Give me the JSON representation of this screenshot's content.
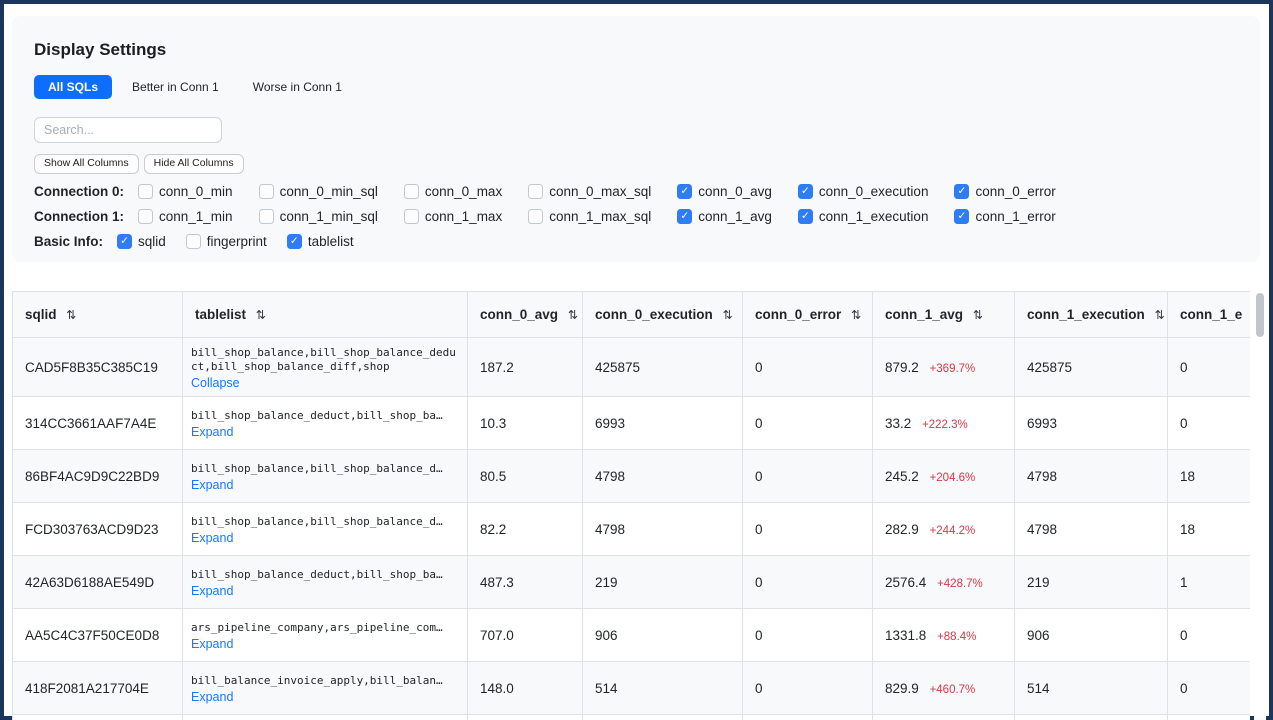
{
  "panel": {
    "title": "Display Settings",
    "tabs": [
      {
        "label": "All SQLs",
        "active": true
      },
      {
        "label": "Better in Conn 1",
        "active": false
      },
      {
        "label": "Worse in Conn 1",
        "active": false
      }
    ],
    "search_placeholder": "Search...",
    "show_all_label": "Show All Columns",
    "hide_all_label": "Hide All Columns",
    "groups": {
      "conn0": {
        "label": "Connection 0:",
        "items": [
          {
            "label": "conn_0_min",
            "checked": false
          },
          {
            "label": "conn_0_min_sql",
            "checked": false
          },
          {
            "label": "conn_0_max",
            "checked": false
          },
          {
            "label": "conn_0_max_sql",
            "checked": false
          },
          {
            "label": "conn_0_avg",
            "checked": true
          },
          {
            "label": "conn_0_execution",
            "checked": true
          },
          {
            "label": "conn_0_error",
            "checked": true
          }
        ]
      },
      "conn1": {
        "label": "Connection 1:",
        "items": [
          {
            "label": "conn_1_min",
            "checked": false
          },
          {
            "label": "conn_1_min_sql",
            "checked": false
          },
          {
            "label": "conn_1_max",
            "checked": false
          },
          {
            "label": "conn_1_max_sql",
            "checked": false
          },
          {
            "label": "conn_1_avg",
            "checked": true
          },
          {
            "label": "conn_1_execution",
            "checked": true
          },
          {
            "label": "conn_1_error",
            "checked": true
          }
        ]
      },
      "basic": {
        "label": "Basic Info:",
        "items": [
          {
            "label": "sqlid",
            "checked": true
          },
          {
            "label": "fingerprint",
            "checked": false
          },
          {
            "label": "tablelist",
            "checked": true
          }
        ]
      }
    },
    "checkmark_icon": "✓"
  },
  "table": {
    "sort_icon": "⇅",
    "columns": [
      {
        "label": "sqlid",
        "sortable": true
      },
      {
        "label": "tablelist",
        "sortable": true
      },
      {
        "label": "conn_0_avg",
        "sortable": true
      },
      {
        "label": "conn_0_execution",
        "sortable": true
      },
      {
        "label": "conn_0_error",
        "sortable": true
      },
      {
        "label": "conn_1_avg",
        "sortable": true
      },
      {
        "label": "conn_1_execution",
        "sortable": true
      },
      {
        "label": "conn_1_e",
        "sortable": false
      }
    ],
    "rows": [
      {
        "sqlid": "CAD5F8B35C385C19",
        "tablelist": "bill_shop_balance,bill_shop_balance_deduct,bill_shop_balance_diff,shop",
        "toggle": "Collapse",
        "conn_0_avg": "187.2",
        "conn_0_execution": "425875",
        "conn_0_error": "0",
        "conn_1_avg": "879.2",
        "conn_1_delta": "+369.7%",
        "conn_1_execution": "425875",
        "conn_1_error": "0"
      },
      {
        "sqlid": "314CC3661AAF7A4E",
        "tablelist": "bill_shop_balance_deduct,bill_shop_ba…",
        "toggle": "Expand",
        "conn_0_avg": "10.3",
        "conn_0_execution": "6993",
        "conn_0_error": "0",
        "conn_1_avg": "33.2",
        "conn_1_delta": "+222.3%",
        "conn_1_execution": "6993",
        "conn_1_error": "0"
      },
      {
        "sqlid": "86BF4AC9D9C22BD9",
        "tablelist": "bill_shop_balance,bill_shop_balance_d…",
        "toggle": "Expand",
        "conn_0_avg": "80.5",
        "conn_0_execution": "4798",
        "conn_0_error": "0",
        "conn_1_avg": "245.2",
        "conn_1_delta": "+204.6%",
        "conn_1_execution": "4798",
        "conn_1_error": "18"
      },
      {
        "sqlid": "FCD303763ACD9D23",
        "tablelist": "bill_shop_balance,bill_shop_balance_d…",
        "toggle": "Expand",
        "conn_0_avg": "82.2",
        "conn_0_execution": "4798",
        "conn_0_error": "0",
        "conn_1_avg": "282.9",
        "conn_1_delta": "+244.2%",
        "conn_1_execution": "4798",
        "conn_1_error": "18"
      },
      {
        "sqlid": "42A63D6188AE549D",
        "tablelist": "bill_shop_balance_deduct,bill_shop_ba…",
        "toggle": "Expand",
        "conn_0_avg": "487.3",
        "conn_0_execution": "219",
        "conn_0_error": "0",
        "conn_1_avg": "2576.4",
        "conn_1_delta": "+428.7%",
        "conn_1_execution": "219",
        "conn_1_error": "1"
      },
      {
        "sqlid": "AA5C4C37F50CE0D8",
        "tablelist": "ars_pipeline_company,ars_pipeline_com…",
        "toggle": "Expand",
        "conn_0_avg": "707.0",
        "conn_0_execution": "906",
        "conn_0_error": "0",
        "conn_1_avg": "1331.8",
        "conn_1_delta": "+88.4%",
        "conn_1_execution": "906",
        "conn_1_error": "0"
      },
      {
        "sqlid": "418F2081A217704E",
        "tablelist": "bill_balance_invoice_apply,bill_balan…",
        "toggle": "Expand",
        "conn_0_avg": "148.0",
        "conn_0_execution": "514",
        "conn_0_error": "0",
        "conn_1_avg": "829.9",
        "conn_1_delta": "+460.7%",
        "conn_1_execution": "514",
        "conn_1_error": "0"
      }
    ]
  }
}
